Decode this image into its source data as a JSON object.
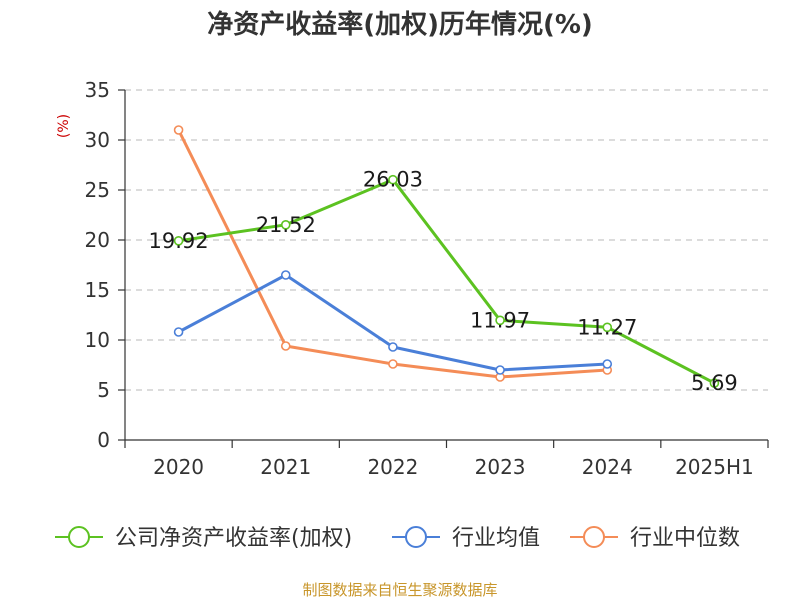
{
  "chart_data": {
    "type": "line",
    "title": "净资产收益率(加权)历年情况(%)",
    "y_unit_label": "(%)",
    "categories": [
      "2020",
      "2021",
      "2022",
      "2023",
      "2024",
      "2025H1"
    ],
    "ylim": [
      0,
      35
    ],
    "yticks": [
      0,
      5,
      10,
      15,
      20,
      25,
      30,
      35
    ],
    "grid": true,
    "legend_position": "bottom",
    "series": [
      {
        "name": "公司净资产收益率(加权)",
        "color": "#5cc221",
        "values": [
          19.92,
          21.52,
          26.03,
          11.97,
          11.27,
          5.69
        ],
        "show_labels": true
      },
      {
        "name": "行业均值",
        "color": "#4a7fd8",
        "values": [
          10.8,
          16.5,
          9.3,
          7.0,
          7.6,
          null
        ],
        "show_labels": false
      },
      {
        "name": "行业中位数",
        "color": "#f48c57",
        "values": [
          31.0,
          9.4,
          7.6,
          6.3,
          7.0,
          null
        ],
        "show_labels": false
      }
    ]
  },
  "source_text": "制图数据来自恒生聚源数据库",
  "source_color": "#c8962b",
  "unit_color": "#cc0000"
}
